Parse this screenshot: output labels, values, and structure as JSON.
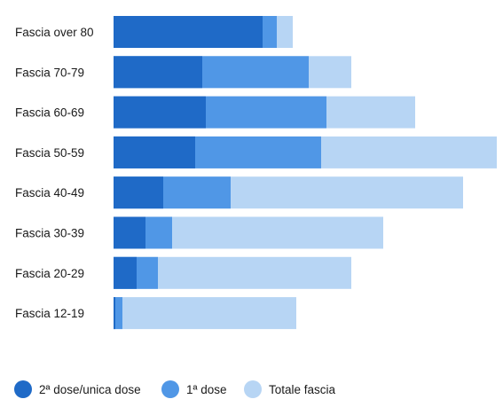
{
  "chart_data": {
    "type": "bar",
    "orientation": "horizontal",
    "stacked": "overlay",
    "categories": [
      "Fascia over 80",
      "Fascia 70-79",
      "Fascia 60-69",
      "Fascia 50-59",
      "Fascia 40-49",
      "Fascia 30-39",
      "Fascia 20-29",
      "Fascia 12-19"
    ],
    "series": [
      {
        "name": "2ª dose/unica dose",
        "color": "#1f6ac7",
        "values": [
          4.2,
          2.5,
          2.6,
          2.3,
          1.4,
          0.9,
          0.65,
          0.05
        ]
      },
      {
        "name": "1ª dose",
        "color": "#5097e6",
        "values": [
          4.6,
          5.5,
          6.0,
          5.85,
          3.3,
          1.65,
          1.25,
          0.25
        ]
      },
      {
        "name": "Totale fascia",
        "color": "#b7d5f4",
        "values": [
          5.05,
          6.7,
          8.5,
          10.8,
          9.85,
          7.6,
          6.7,
          5.15
        ]
      }
    ],
    "xlim": [
      0,
      10.8
    ],
    "grid": false,
    "legend": "bottom-left"
  }
}
